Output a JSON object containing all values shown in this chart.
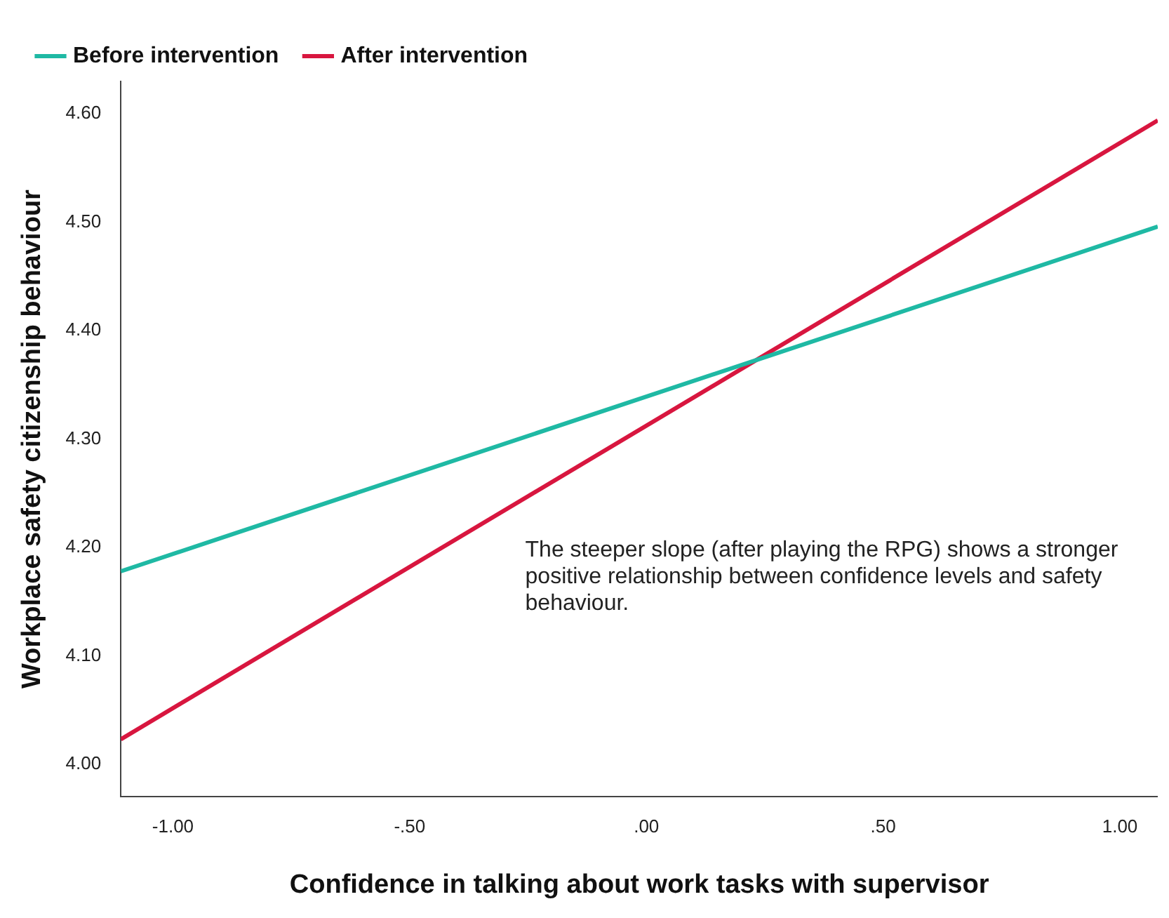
{
  "chart_data": {
    "type": "line",
    "xlabel": "Confidence in talking about work tasks with supervisor",
    "ylabel": "Workplace safety citizenship behaviour",
    "x": [
      -1.11,
      1.08
    ],
    "series": [
      {
        "name": "Before intervention",
        "color": "#1fb9a4",
        "values": [
          4.178,
          4.496
        ]
      },
      {
        "name": "After intervention",
        "color": "#d8163f",
        "values": [
          4.023,
          4.594
        ]
      }
    ],
    "xlim": [
      -1.11,
      1.08
    ],
    "ylim": [
      3.97,
      4.63
    ],
    "xticks": [
      {
        "value": -1,
        "label": "-1.00"
      },
      {
        "value": -0.5,
        "label": "-.50"
      },
      {
        "value": 0,
        "label": ".00"
      },
      {
        "value": 0.5,
        "label": ".50"
      },
      {
        "value": 1,
        "label": "1.00"
      }
    ],
    "yticks": [
      {
        "value": 4,
        "label": "4.00"
      },
      {
        "value": 4.1,
        "label": "4.10"
      },
      {
        "value": 4.2,
        "label": "4.20"
      },
      {
        "value": 4.3,
        "label": "4.30"
      },
      {
        "value": 4.4,
        "label": "4.40"
      },
      {
        "value": 4.5,
        "label": "4.50"
      },
      {
        "value": 4.6,
        "label": "4.60"
      }
    ],
    "grid": false,
    "legend": "top",
    "marker": "none",
    "line_style": "solid",
    "annotations": [
      "The steeper slope (after playing the RPG) shows a stronger positive relationship between confidence levels and safety behaviour."
    ]
  }
}
